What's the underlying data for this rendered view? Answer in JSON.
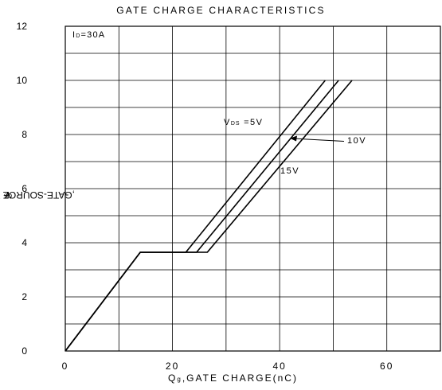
{
  "chart_data": {
    "type": "line",
    "title": "GATE CHARGE CHARACTERISTICS",
    "xlabel": "Qg ,GATE CHARGE(nC)",
    "ylabel": "VGS,GATE-SOURCE VOLTAGE (V)",
    "xlim": [
      0,
      70
    ],
    "ylim": [
      0,
      12
    ],
    "x_ticks": [
      "0",
      "20",
      "40",
      "60"
    ],
    "y_ticks": [
      "0",
      "2",
      "4",
      "6",
      "8",
      "10",
      "12"
    ],
    "grid": true,
    "condition": {
      "prefix": "I",
      "sub": "D",
      "suffix": "=30A"
    },
    "series": [
      {
        "name": "VDS =5V",
        "x": [
          0,
          14,
          22.5,
          48.5
        ],
        "y": [
          0,
          3.65,
          3.65,
          10
        ]
      },
      {
        "name": "10V",
        "x": [
          0,
          14,
          24.5,
          51
        ],
        "y": [
          0,
          3.65,
          3.65,
          10
        ]
      },
      {
        "name": "15V",
        "x": [
          0,
          14,
          26.5,
          53.5
        ],
        "y": [
          0,
          3.65,
          3.65,
          10
        ]
      }
    ],
    "annotations": {
      "vds_prefix": "V",
      "vds_sub": "DS",
      "vds_suffix": " =5V",
      "label_10v": "10V",
      "label_15v": "15V"
    },
    "xlabel_parts": {
      "q": "Q",
      "sub": "g",
      "rest": ",GATE CHARGE(nC)"
    },
    "ylabel_parts": {
      "v": "V",
      "sub": "GS",
      "rest": ",GATE-SOURCE VOLTAGE (V)"
    }
  }
}
